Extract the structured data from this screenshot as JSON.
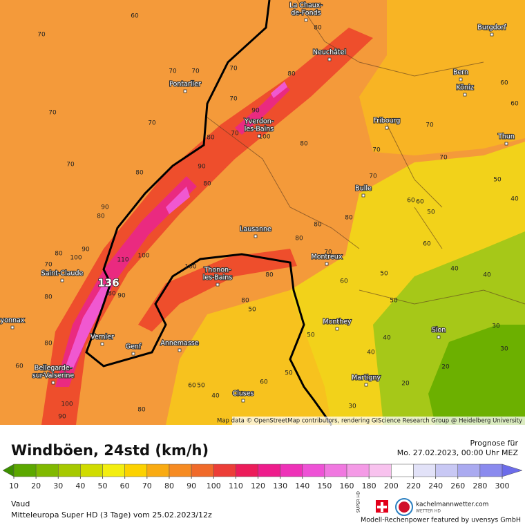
{
  "header": {
    "title": "Windböen, 24std (km/h)",
    "forecast_label": "Prognose für",
    "forecast_time": "Mo. 27.02.2023, 00:00 Uhr MEZ",
    "region": "Vaud",
    "model_run": "Mitteleuropa Super HD (3 Tage) vom 25.02.2023/12z",
    "site": "kachelmannwetter.com",
    "site_sub": "WETTER HD",
    "super_hd": "SUPER HD",
    "sponsor": "Modell-Rechenpower featured by uvensys GmbH",
    "attribution": "Map data © OpenStreetMap contributors, rendering GIScience Research Group @ Heidelberg University"
  },
  "legend": {
    "ticks": [
      10,
      20,
      30,
      40,
      50,
      60,
      70,
      80,
      90,
      100,
      110,
      120,
      130,
      140,
      150,
      160,
      180,
      200,
      220,
      240,
      260,
      280,
      300
    ],
    "colors": [
      "#3d8f00",
      "#5ca800",
      "#80b900",
      "#a6c900",
      "#d0dc00",
      "#f3ee10",
      "#fcd200",
      "#f9ab12",
      "#f68b22",
      "#f06a2a",
      "#ec3e38",
      "#ec1c5a",
      "#ee1c8c",
      "#ee32b8",
      "#ee52d6",
      "#f078e0",
      "#f49ae6",
      "#f8c2ee",
      "#ffffff",
      "#e2e2f8",
      "#c8c8f4",
      "#aaaaf0",
      "#8a8aee",
      "#6c6cea"
    ]
  },
  "map": {
    "max_value": 136,
    "places": [
      [
        "La Chaux-",
        "de-Fonds"
      ],
      [
        "Burgdorf"
      ],
      [
        "Neuchâtel"
      ],
      [
        "Bern"
      ],
      [
        "Köniz"
      ],
      [
        "Pontarlier"
      ],
      [
        "Yverdon-",
        "les-Bains"
      ],
      [
        "Fribourg"
      ],
      [
        "Thun"
      ],
      [
        "Bulle"
      ],
      [
        "Lausanne"
      ],
      [
        "Montreux"
      ],
      [
        "Thonon-",
        "les-Bains"
      ],
      [
        "Saint-Claude"
      ],
      [
        "yonnax"
      ],
      [
        "Vernier"
      ],
      [
        "Genf"
      ],
      [
        "Annemasse"
      ],
      [
        "Monthey"
      ],
      [
        "Sion"
      ],
      [
        "Bellegarde-",
        "sur-Valserine"
      ],
      [
        "Cluses"
      ],
      [
        "Martigny"
      ]
    ],
    "contour_labels": [
      60,
      70,
      70,
      70,
      70,
      80,
      80,
      70,
      70,
      70,
      90,
      70,
      80,
      90,
      80,
      90,
      80,
      90,
      80,
      70,
      100,
      110,
      100,
      100,
      80,
      90,
      80,
      80,
      60,
      80,
      50,
      80,
      50,
      60,
      50,
      50,
      60,
      40,
      40,
      40,
      20,
      30,
      30,
      20,
      40,
      30,
      50,
      60,
      40,
      60,
      50,
      80,
      100,
      90,
      70,
      80,
      80,
      80,
      70,
      60,
      70,
      70,
      50,
      40,
      50,
      60,
      70,
      70,
      80,
      100,
      80,
      70,
      60,
      60
    ]
  }
}
